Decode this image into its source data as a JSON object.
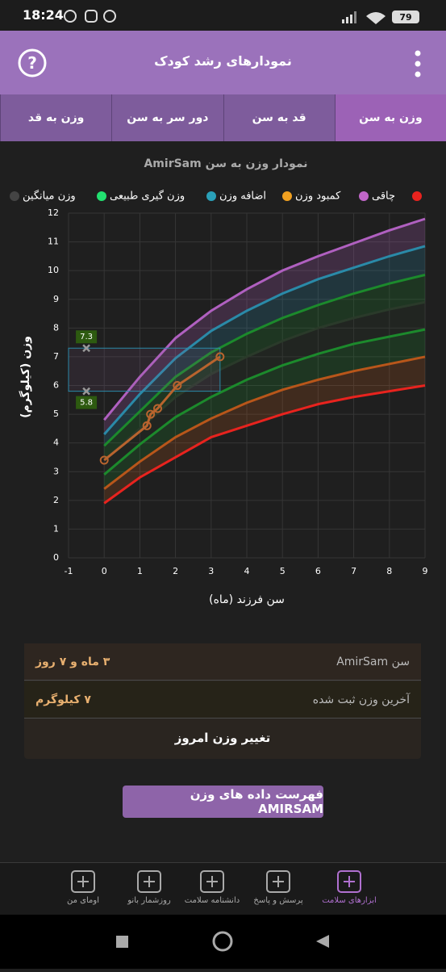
{
  "status_bar": {
    "time": "18:24",
    "battery": "79"
  },
  "header": {
    "title": "نمودارهای رشد کودک"
  },
  "tabs": [
    "وزن به سن",
    "قد به سن",
    "دور سر به سن",
    "وزن به قد"
  ],
  "chart_data": {
    "type": "line",
    "title": "نمودار وزن به سن AmirSam",
    "x_label": "سن فرزند (ماه)",
    "y_label": "وزن (کیلوگرم)",
    "xlim": [
      -1,
      9
    ],
    "xticks": [
      -1,
      0,
      1,
      2,
      3,
      4,
      5,
      6,
      7,
      8,
      9
    ],
    "ylim": [
      0,
      12
    ],
    "yticks": [
      0,
      1,
      2,
      3,
      4,
      5,
      6,
      7,
      8,
      9,
      10,
      11,
      12
    ],
    "grid": true,
    "legend": [
      {
        "color": "#e8231e"
      },
      {
        "name": "چاقی",
        "color": "#c066c8"
      },
      {
        "name": "کمبود وزن",
        "color": "#f0a020"
      },
      {
        "name": "اضافه وزن",
        "color": "#2aa0b8"
      },
      {
        "name": "وزن گیری طبیعی",
        "color": "#22e070"
      },
      {
        "name": "وزن میانگین",
        "color": "#444444"
      }
    ],
    "x": [
      0,
      1,
      2,
      3,
      4,
      5,
      6,
      7,
      8,
      9
    ],
    "series": [
      {
        "color": "#b060c0",
        "values": [
          4.8,
          6.3,
          7.65,
          8.6,
          9.35,
          10.0,
          10.5,
          10.95,
          11.4,
          11.8
        ]
      },
      {
        "color": "#2a8aa8",
        "values": [
          4.3,
          5.7,
          6.95,
          7.9,
          8.6,
          9.2,
          9.7,
          10.1,
          10.5,
          10.85
        ]
      },
      {
        "color": "#1c8a2c",
        "values": [
          3.9,
          5.1,
          6.3,
          7.15,
          7.8,
          8.35,
          8.8,
          9.2,
          9.55,
          9.85
        ]
      },
      {
        "color": "#2a3a2a",
        "values": [
          3.4,
          4.5,
          5.6,
          6.4,
          7.0,
          7.55,
          8.0,
          8.35,
          8.65,
          8.9
        ]
      },
      {
        "color": "#1c8a2c",
        "values": [
          2.9,
          3.95,
          4.9,
          5.6,
          6.2,
          6.7,
          7.1,
          7.45,
          7.7,
          7.95
        ]
      },
      {
        "color": "#b8561a",
        "values": [
          2.4,
          3.35,
          4.2,
          4.85,
          5.4,
          5.85,
          6.2,
          6.5,
          6.75,
          7.0
        ]
      },
      {
        "color": "#e8231e",
        "values": [
          1.9,
          2.8,
          3.5,
          4.2,
          4.6,
          5.0,
          5.35,
          5.6,
          5.8,
          6.0
        ]
      }
    ],
    "child": {
      "color": "#b8642e",
      "x": [
        0,
        1.2,
        1.3,
        1.5,
        2.05,
        3.25
      ],
      "values": [
        3.4,
        4.6,
        5.0,
        5.2,
        6.0,
        7.0
      ]
    },
    "range_marker": {
      "x": -0.5,
      "x_end": 3.25,
      "values": [
        7.3,
        5.8
      ]
    }
  },
  "summary": {
    "rows": [
      {
        "label": "سن AmirSam",
        "value": "۳ ماه و ۷ روز"
      },
      {
        "label": "آخرین وزن ثبت شده",
        "value": "۷ کیلوگرم"
      }
    ],
    "action": "تغییر وزن امروز"
  },
  "button": "فهرست داده های وزن AMIRSAM",
  "nav": [
    "ابزارهای سلامت",
    "پرسش و پاسخ",
    "دانشنامه سلامت",
    "روزشمار بانو",
    "اومای من"
  ]
}
